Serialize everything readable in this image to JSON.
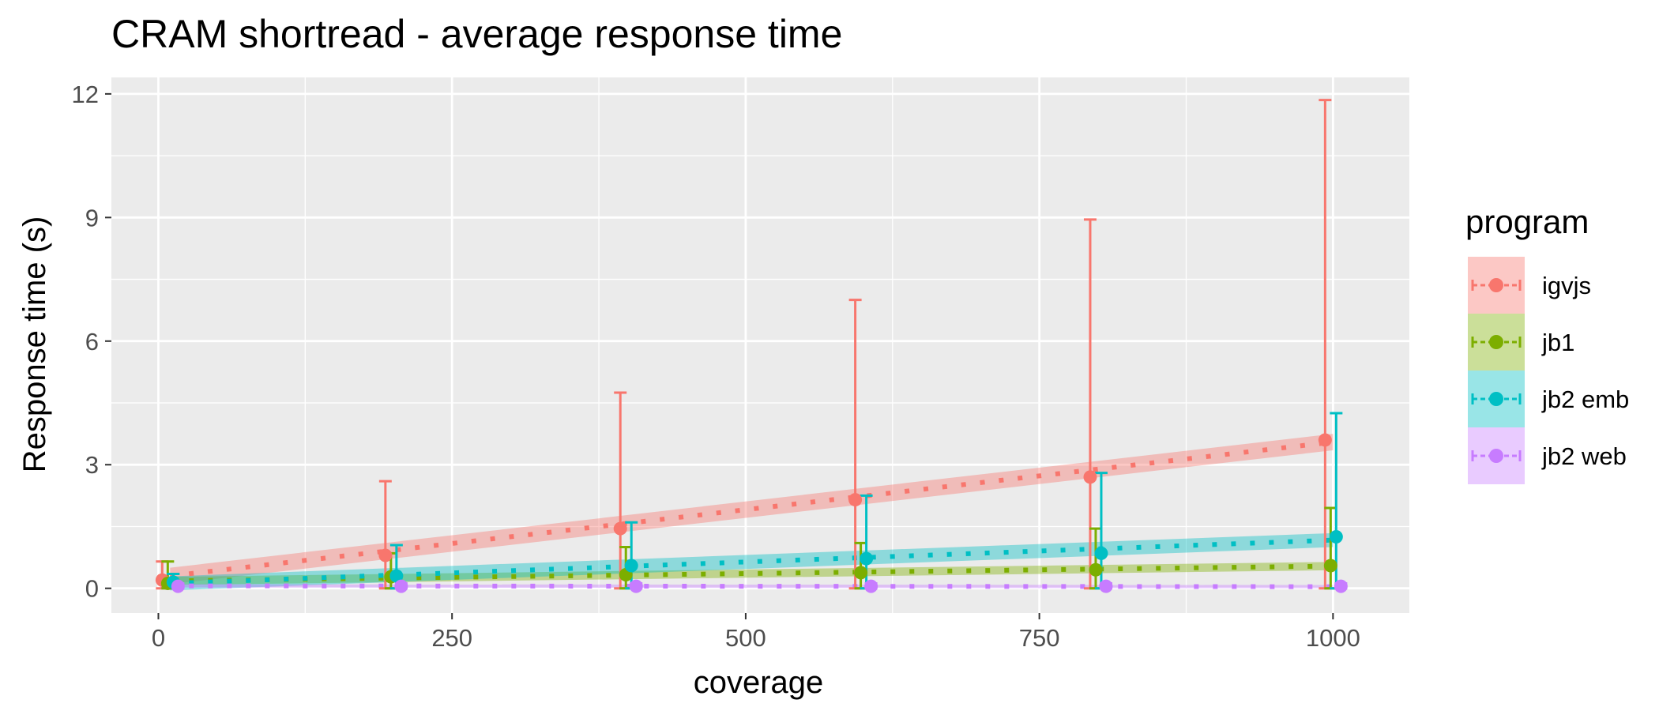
{
  "chart_data": {
    "type": "line",
    "title": "CRAM shortread - average response time",
    "xlabel": "coverage",
    "ylabel": "Response time (s)",
    "xlim": [
      -40,
      1065
    ],
    "ylim": [
      -0.6,
      12.4
    ],
    "x_ticks": [
      0,
      250,
      500,
      750,
      1000
    ],
    "x_tick_labels": [
      "0",
      "250",
      "500",
      "750",
      "1000"
    ],
    "y_ticks": [
      0,
      3,
      6,
      9,
      12
    ],
    "y_tick_labels": [
      "0",
      "3",
      "6",
      "9",
      "12"
    ],
    "grid": true,
    "legend": {
      "title": "program",
      "position": "right"
    },
    "series": [
      {
        "name": "igvjs",
        "color": "#F8766D",
        "dodge": -10,
        "x": [
          10,
          200,
          400,
          600,
          800,
          1000
        ],
        "y": [
          0.2,
          0.8,
          1.45,
          2.15,
          2.7,
          3.6
        ],
        "ymin": [
          0,
          0,
          0,
          0,
          0,
          0
        ],
        "ymax": [
          0.65,
          2.6,
          4.75,
          7.0,
          8.95,
          11.85
        ],
        "fit": [
          0.3,
          3.55
        ],
        "band": 0.2
      },
      {
        "name": "jb1",
        "color": "#7CAE00",
        "dodge": -3,
        "x": [
          10,
          200,
          400,
          600,
          800,
          1000
        ],
        "y": [
          0.12,
          0.28,
          0.33,
          0.38,
          0.45,
          0.55
        ],
        "ymin": [
          0,
          0,
          0,
          0,
          0,
          0
        ],
        "ymax": [
          0.65,
          0.85,
          1.0,
          1.1,
          1.45,
          1.95
        ],
        "fit": [
          0.18,
          0.54
        ],
        "band": 0.1
      },
      {
        "name": "jb2 emb",
        "color": "#00BFC4",
        "dodge": 4,
        "x": [
          10,
          200,
          400,
          600,
          800,
          1000
        ],
        "y": [
          0.15,
          0.3,
          0.55,
          0.72,
          0.85,
          1.25
        ],
        "ymin": [
          0,
          0,
          0,
          0,
          0,
          0
        ],
        "ymax": [
          0.35,
          1.05,
          1.6,
          2.25,
          2.8,
          4.25
        ],
        "fit": [
          0.12,
          1.17
        ],
        "band": 0.17
      },
      {
        "name": "jb2 web",
        "color": "#C77CFF",
        "dodge": 10,
        "x": [
          10,
          200,
          400,
          600,
          800,
          1000
        ],
        "y": [
          0.05,
          0.05,
          0.05,
          0.05,
          0.05,
          0.05
        ],
        "ymin": [
          0,
          0,
          0,
          0,
          0,
          0
        ],
        "ymax": [
          0.12,
          0.12,
          0.12,
          0.12,
          0.12,
          0.12
        ],
        "fit": [
          0.06,
          0.04
        ],
        "band": 0.04
      }
    ]
  }
}
